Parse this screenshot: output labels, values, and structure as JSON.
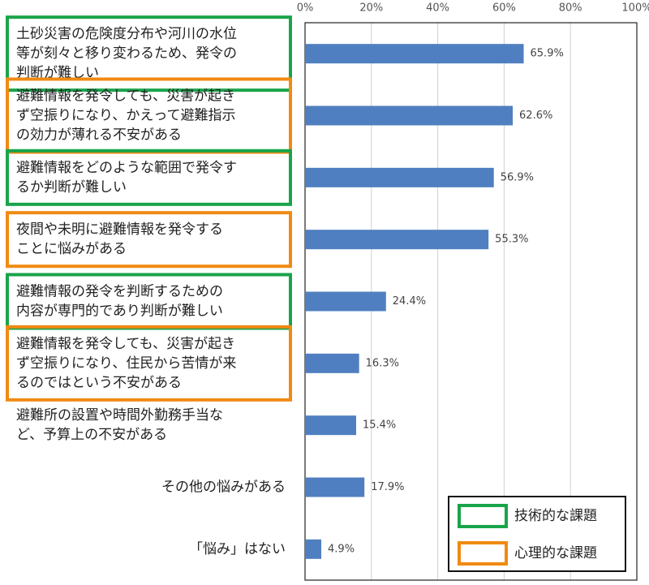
{
  "chart_data": {
    "type": "barh",
    "categories": [
      [
        "土砂災害の危険度分布や河川の水位",
        "等が刻々と移り変わるため、発令の",
        "判断が難しい"
      ],
      [
        "避難情報を発令しても、災害が起き",
        "ず空振りになり、かえって避難指示",
        "の効力が薄れる不安がある"
      ],
      [
        "避難情報をどのような範囲で発令す",
        "るか判断が難しい"
      ],
      [
        "夜間や未明に避難情報を発令する",
        "ことに悩みがある"
      ],
      [
        "避難情報の発令を判断するための",
        "内容が専門的であり判断が難しい"
      ],
      [
        "避難情報を発令しても、災害が起き",
        "ず空振りになり、住民から苦情が来",
        "るのではという不安がある"
      ],
      [
        "避難所の設置や時間外勤務手当な",
        "ど、予算上の不安がある"
      ],
      [
        "その他の悩みがある"
      ],
      [
        "「悩み」はない"
      ]
    ],
    "values": [
      65.9,
      62.6,
      56.9,
      55.3,
      24.4,
      16.3,
      15.4,
      17.9,
      4.9
    ],
    "value_labels": [
      "65.9%",
      "62.6%",
      "56.9%",
      "55.3%",
      "24.4%",
      "16.3%",
      "15.4%",
      "17.9%",
      "4.9%"
    ],
    "color": "#4f7fc0",
    "category_box_colors": [
      "#19a44a",
      "#f08a12",
      "#19a44a",
      "#f08a12",
      "#19a44a",
      "#f08a12",
      null,
      null,
      null
    ],
    "legend": [
      {
        "name": "技術的な課題",
        "color": "#19a44a"
      },
      {
        "name": "心理的な課題",
        "color": "#f08a12"
      }
    ],
    "xlim": [
      0,
      100
    ],
    "xticks": [
      {
        "value": 0,
        "label": "0%"
      },
      {
        "value": 20,
        "label": "20%"
      },
      {
        "value": 40,
        "label": "40%"
      },
      {
        "value": 60,
        "label": "60%"
      },
      {
        "value": 80,
        "label": "80%"
      },
      {
        "value": 100,
        "label": "100%"
      }
    ],
    "grid": true
  }
}
